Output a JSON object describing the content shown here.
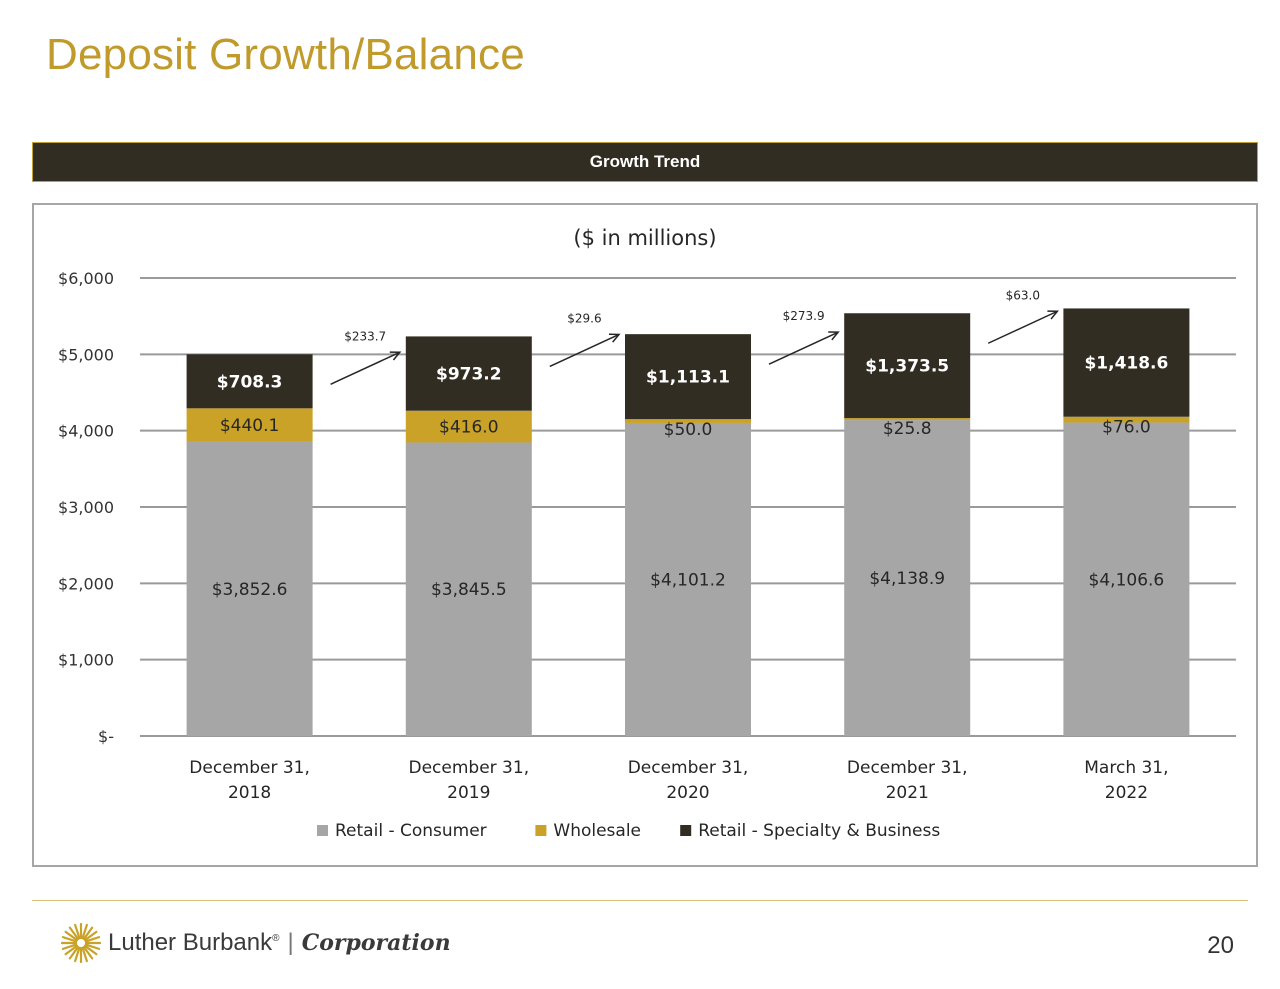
{
  "header": {
    "title": "Deposit Growth/Balance"
  },
  "banner": {
    "label": "Growth Trend"
  },
  "footer": {
    "logo_name": "Luther Burbank",
    "logo_reg": "®",
    "logo_separator": "|",
    "logo_corp": "Corporation",
    "logo_icon": "sunburst-logo-icon",
    "page_number": "20"
  },
  "colors": {
    "title": "#c09a2a",
    "banner_bg": "#312d22",
    "banner_border": "#c3a12d",
    "retail_consumer": "#a6a6a6",
    "wholesale": "#c9a227",
    "retail_specialty": "#312d22"
  },
  "chart_data": {
    "type": "bar",
    "stacked": true,
    "title": "($ in millions)",
    "categories": [
      [
        "December 31,",
        "2018"
      ],
      [
        "December 31,",
        "2019"
      ],
      [
        "December 31,",
        "2020"
      ],
      [
        "December 31,",
        "2021"
      ],
      [
        "March 31,",
        "2022"
      ]
    ],
    "ylim": [
      0,
      6000
    ],
    "yticks": [
      0,
      1000,
      2000,
      3000,
      4000,
      5000,
      6000
    ],
    "ytick_labels": [
      "$-",
      "$1,000",
      "$2,000",
      "$3,000",
      "$4,000",
      "$5,000",
      "$6,000"
    ],
    "grid": true,
    "legend_position": "bottom",
    "series": [
      {
        "name": "Retail - Consumer",
        "color": "#a6a6a6",
        "values": [
          3852.6,
          3845.5,
          4101.2,
          4138.9,
          4106.6
        ],
        "labels": [
          "$3,852.6",
          "$3,845.5",
          "$4,101.2",
          "$4,138.9",
          "$4,106.6"
        ]
      },
      {
        "name": "Wholesale",
        "color": "#c9a227",
        "values": [
          440.1,
          416.0,
          50.0,
          25.8,
          76.0
        ],
        "labels": [
          "$440.1",
          "$416.0",
          "$50.0",
          "$25.8",
          "$76.0"
        ]
      },
      {
        "name": "Retail - Specialty & Business",
        "color": "#312d22",
        "values": [
          708.3,
          973.2,
          1113.1,
          1373.5,
          1418.6
        ],
        "labels": [
          "$708.3",
          "$973.2",
          "$1,113.1",
          "$1,373.5",
          "$1,418.6"
        ]
      }
    ],
    "annotations": [
      {
        "between": [
          0,
          1
        ],
        "label": "$233.7"
      },
      {
        "between": [
          1,
          2
        ],
        "label": "$29.6"
      },
      {
        "between": [
          2,
          3
        ],
        "label": "$273.9"
      },
      {
        "between": [
          3,
          4
        ],
        "label": "$63.0"
      }
    ]
  }
}
